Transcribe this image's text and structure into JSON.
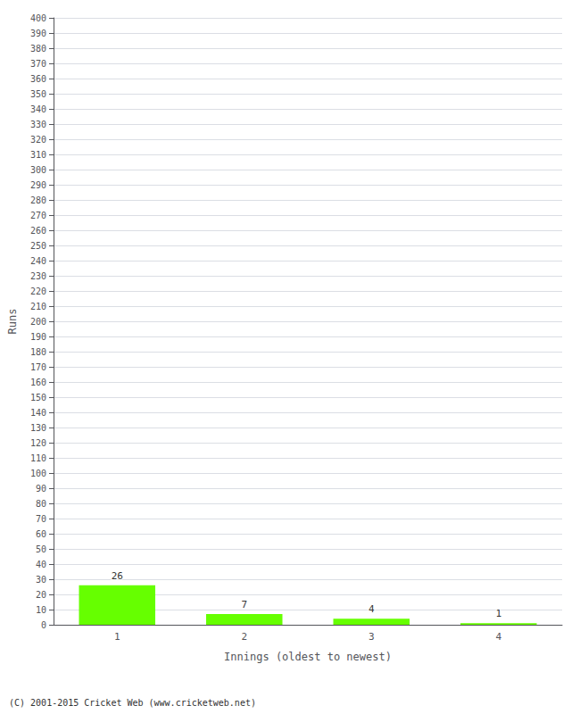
{
  "chart_data": {
    "type": "bar",
    "categories": [
      "1",
      "2",
      "3",
      "4"
    ],
    "values": [
      26,
      7,
      4,
      1
    ],
    "color": "#66ff00",
    "xlabel": "Innings (oldest to newest)",
    "ylabel": "Runs",
    "ylim": [
      0,
      400
    ],
    "yticks": [
      0,
      10,
      20,
      30,
      40,
      50,
      60,
      70,
      80,
      90,
      100,
      110,
      120,
      130,
      140,
      150,
      160,
      170,
      180,
      190,
      200,
      210,
      220,
      230,
      240,
      250,
      260,
      270,
      280,
      290,
      300,
      310,
      320,
      330,
      340,
      350,
      360,
      370,
      380,
      390,
      400
    ],
    "grid": true,
    "data_labels": true,
    "annotations": [
      "(C) 2001-2015 Cricket Web (www.cricketweb.net)"
    ]
  }
}
